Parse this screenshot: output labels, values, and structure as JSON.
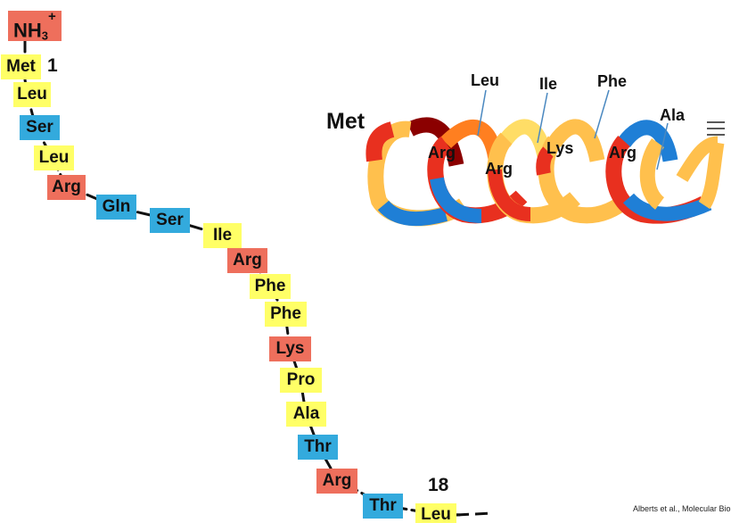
{
  "chain": {
    "n_terminus": {
      "base": "NH",
      "sub": "3",
      "sup": "+"
    },
    "start_number": "1",
    "end_number": "18",
    "residues": [
      {
        "name": "Met",
        "type": "hydrophobic"
      },
      {
        "name": "Leu",
        "type": "hydrophobic"
      },
      {
        "name": "Ser",
        "type": "polar"
      },
      {
        "name": "Leu",
        "type": "hydrophobic"
      },
      {
        "name": "Arg",
        "type": "charged"
      },
      {
        "name": "Gln",
        "type": "polar"
      },
      {
        "name": "Ser",
        "type": "polar"
      },
      {
        "name": "Ile",
        "type": "hydrophobic"
      },
      {
        "name": "Arg",
        "type": "charged"
      },
      {
        "name": "Phe",
        "type": "hydrophobic"
      },
      {
        "name": "Phe",
        "type": "hydrophobic"
      },
      {
        "name": "Lys",
        "type": "charged"
      },
      {
        "name": "Pro",
        "type": "hydrophobic"
      },
      {
        "name": "Ala",
        "type": "hydrophobic"
      },
      {
        "name": "Thr",
        "type": "polar"
      },
      {
        "name": "Arg",
        "type": "charged"
      },
      {
        "name": "Thr",
        "type": "polar"
      },
      {
        "name": "Leu",
        "type": "hydrophobic"
      }
    ]
  },
  "helix": {
    "start_label": "Met",
    "labels": [
      "Leu",
      "Ile",
      "Phe",
      "Ala",
      "Arg",
      "Arg",
      "Lys",
      "Arg"
    ]
  },
  "colors": {
    "hydrophobic": "#ffff66",
    "polar": "#33aadd",
    "charged": "#ee6f5c",
    "helix_yellow": "#ffc04d",
    "helix_red": "#e8301f",
    "helix_blue": "#1f7fd6",
    "helix_dark": "#8b0000"
  },
  "credit": "Alberts et al., Molecular Biolo"
}
